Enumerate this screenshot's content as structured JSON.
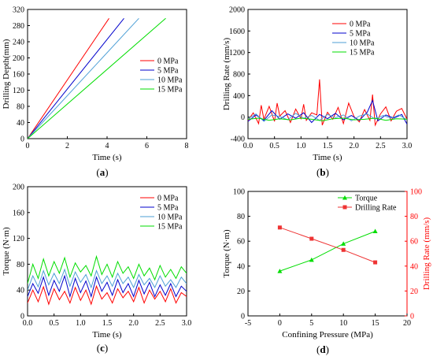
{
  "chart_data": [
    {
      "panel_label": "a",
      "type": "line",
      "xlabel": "Time (s)",
      "ylabel": "Drilling Depth(mm)",
      "xlim": [
        0,
        8
      ],
      "ylim": [
        0,
        320
      ],
      "xticks": [
        0,
        2,
        4,
        6,
        8
      ],
      "yticks": [
        0,
        40,
        80,
        120,
        160,
        200,
        240,
        280,
        320
      ],
      "legend": "right",
      "series": [
        {
          "name": "0 MPa",
          "color": "#ff0000",
          "x": [
            0,
            4.1
          ],
          "y": [
            0,
            298
          ]
        },
        {
          "name": "5 MPa",
          "color": "#0000cc",
          "x": [
            0,
            4.85
          ],
          "y": [
            0,
            298
          ]
        },
        {
          "name": "10 MPa",
          "color": "#4d9fd6",
          "x": [
            0,
            5.6
          ],
          "y": [
            0,
            298
          ]
        },
        {
          "name": "15 MPa",
          "color": "#00dd00",
          "x": [
            0,
            6.95
          ],
          "y": [
            0,
            298
          ]
        }
      ]
    },
    {
      "panel_label": "b",
      "type": "line",
      "xlabel": "Time (s)",
      "ylabel": "Drilling Rate (mm/s)",
      "xlim": [
        0,
        3.0
      ],
      "ylim": [
        -400,
        2000
      ],
      "xticks": [
        "0.0",
        "0.5",
        "1.0",
        "1.5",
        "2.0",
        "2.5",
        "3.0"
      ],
      "yticks": [
        -400,
        0,
        400,
        800,
        1200,
        1600,
        2000
      ],
      "legend": "top-right",
      "series": [
        {
          "name": "0 MPa",
          "color": "#ff0000",
          "x": [
            0,
            0.1,
            0.2,
            0.25,
            0.3,
            0.4,
            0.5,
            0.55,
            0.6,
            0.7,
            0.8,
            0.9,
            1.0,
            1.05,
            1.1,
            1.2,
            1.3,
            1.35,
            1.4,
            1.5,
            1.6,
            1.7,
            1.8,
            1.9,
            2.0,
            2.1,
            2.2,
            2.3,
            2.35,
            2.4,
            2.5,
            2.6,
            2.7,
            2.8,
            2.9,
            3.0
          ],
          "y": [
            -60,
            80,
            -120,
            220,
            -40,
            200,
            -80,
            260,
            20,
            120,
            -100,
            150,
            -30,
            240,
            -60,
            80,
            40,
            700,
            -150,
            90,
            -40,
            180,
            -120,
            260,
            10,
            -90,
            140,
            -60,
            420,
            -150,
            60,
            190,
            -70,
            110,
            160,
            -40
          ]
        },
        {
          "name": "5 MPa",
          "color": "#0000cc",
          "x": [
            0,
            0.15,
            0.3,
            0.45,
            0.6,
            0.75,
            0.9,
            1.05,
            1.2,
            1.35,
            1.5,
            1.65,
            1.8,
            1.95,
            2.1,
            2.25,
            2.35,
            2.45,
            2.6,
            2.75,
            2.9,
            3.0
          ],
          "y": [
            -80,
            40,
            -60,
            120,
            -40,
            60,
            -20,
            80,
            -100,
            50,
            -30,
            70,
            -50,
            30,
            -60,
            90,
            310,
            -70,
            40,
            -20,
            50,
            -130
          ]
        },
        {
          "name": "10 MPa",
          "color": "#4d9fd6",
          "x": [
            0,
            0.15,
            0.3,
            0.45,
            0.6,
            0.75,
            0.9,
            1.05,
            1.2,
            1.35,
            1.5,
            1.65,
            1.8,
            1.95,
            2.1,
            2.25,
            2.4,
            2.55,
            2.7,
            2.85,
            3.0
          ],
          "y": [
            -30,
            60,
            -80,
            40,
            10,
            -50,
            70,
            -20,
            30,
            -60,
            50,
            -10,
            40,
            -70,
            20,
            60,
            -40,
            30,
            -20,
            40,
            -50
          ]
        },
        {
          "name": "15 MPa",
          "color": "#00dd00",
          "x": [
            0,
            0.2,
            0.4,
            0.6,
            0.8,
            1.0,
            1.2,
            1.4,
            1.6,
            1.8,
            2.0,
            2.2,
            2.4,
            2.6,
            2.8,
            3.0
          ],
          "y": [
            -40,
            -20,
            -60,
            -30,
            -50,
            -20,
            -40,
            -70,
            -30,
            -20,
            -50,
            -40,
            -20,
            -60,
            -30,
            -40
          ]
        }
      ]
    },
    {
      "panel_label": "c",
      "type": "line",
      "xlabel": "Time (s)",
      "ylabel": "Torque (N·m)",
      "xlim": [
        0,
        3.0
      ],
      "ylim": [
        0,
        200
      ],
      "xticks": [
        "0.0",
        "0.5",
        "1.0",
        "1.5",
        "2.0",
        "2.5",
        "3.0"
      ],
      "yticks": [
        0,
        40,
        80,
        120,
        160,
        200
      ],
      "legend": "top-right",
      "series": [
        {
          "name": "0 MPa",
          "color": "#ff0000",
          "x": [
            0,
            0.1,
            0.2,
            0.3,
            0.4,
            0.5,
            0.6,
            0.7,
            0.8,
            0.9,
            1.0,
            1.1,
            1.2,
            1.3,
            1.4,
            1.5,
            1.6,
            1.7,
            1.8,
            1.9,
            2.0,
            2.1,
            2.2,
            2.3,
            2.4,
            2.5,
            2.6,
            2.7,
            2.8,
            2.9,
            3.0
          ],
          "y": [
            20,
            40,
            22,
            45,
            18,
            42,
            25,
            38,
            20,
            44,
            24,
            40,
            18,
            46,
            26,
            36,
            20,
            42,
            28,
            38,
            22,
            44,
            20,
            40,
            26,
            38,
            22,
            42,
            20,
            36,
            30
          ]
        },
        {
          "name": "5 MPa",
          "color": "#0000cc",
          "x": [
            0,
            0.1,
            0.2,
            0.3,
            0.4,
            0.5,
            0.6,
            0.7,
            0.8,
            0.9,
            1.0,
            1.1,
            1.2,
            1.3,
            1.4,
            1.5,
            1.6,
            1.7,
            1.8,
            1.9,
            2.0,
            2.1,
            2.2,
            2.3,
            2.4,
            2.5,
            2.6,
            2.7,
            2.8,
            2.9,
            3.0
          ],
          "y": [
            30,
            50,
            35,
            60,
            32,
            55,
            38,
            62,
            30,
            58,
            36,
            54,
            30,
            60,
            38,
            52,
            32,
            56,
            36,
            50,
            30,
            55,
            34,
            52,
            30,
            48,
            32,
            50,
            30,
            46,
            38
          ]
        },
        {
          "name": "10 MPa",
          "color": "#4d9fd6",
          "x": [
            0,
            0.1,
            0.2,
            0.3,
            0.4,
            0.5,
            0.6,
            0.7,
            0.8,
            0.9,
            1.0,
            1.1,
            1.2,
            1.3,
            1.4,
            1.5,
            1.6,
            1.7,
            1.8,
            1.9,
            2.0,
            2.1,
            2.2,
            2.3,
            2.4,
            2.5,
            2.6,
            2.7,
            2.8,
            2.9,
            3.0
          ],
          "y": [
            40,
            62,
            45,
            70,
            48,
            66,
            50,
            72,
            46,
            68,
            52,
            64,
            44,
            70,
            50,
            62,
            46,
            66,
            50,
            60,
            44,
            64,
            48,
            58,
            44,
            62,
            46,
            56,
            44,
            60,
            50
          ]
        },
        {
          "name": "15 MPa",
          "color": "#00dd00",
          "x": [
            0,
            0.1,
            0.2,
            0.3,
            0.4,
            0.5,
            0.6,
            0.7,
            0.8,
            0.9,
            1.0,
            1.1,
            1.2,
            1.3,
            1.4,
            1.5,
            1.6,
            1.7,
            1.8,
            1.9,
            2.0,
            2.1,
            2.2,
            2.3,
            2.4,
            2.5,
            2.6,
            2.7,
            2.8,
            2.9,
            3.0
          ],
          "y": [
            50,
            80,
            58,
            88,
            62,
            84,
            66,
            90,
            60,
            82,
            68,
            78,
            62,
            92,
            64,
            80,
            60,
            84,
            66,
            76,
            58,
            80,
            62,
            74,
            56,
            78,
            60,
            72,
            58,
            76,
            66
          ]
        }
      ]
    },
    {
      "panel_label": "d",
      "type": "line",
      "xlabel": "Confining Pressure (MPa)",
      "ylabel": "Torque (N·m)",
      "ylabel_right": "Drilling Rate (mm/s)",
      "xlim": [
        -5,
        20
      ],
      "ylim": [
        0,
        100
      ],
      "ylim_right": [
        0,
        100
      ],
      "xticks": [
        -5,
        0,
        5,
        10,
        15,
        20
      ],
      "yticks": [
        0,
        20,
        40,
        60,
        80,
        100
      ],
      "yticks_right": [
        0,
        20,
        40,
        60,
        80,
        100
      ],
      "legend": "top-right",
      "series": [
        {
          "name": "Torque",
          "color": "#00dd00",
          "marker": "triangle",
          "axis": "left",
          "x": [
            0,
            5,
            10,
            15
          ],
          "y": [
            36,
            45,
            58,
            68
          ]
        },
        {
          "name": "Drilling Rate",
          "color": "#ee3333",
          "marker": "square",
          "axis": "right",
          "x": [
            0,
            5,
            10,
            15
          ],
          "y": [
            71,
            62,
            53,
            43
          ]
        }
      ]
    }
  ]
}
